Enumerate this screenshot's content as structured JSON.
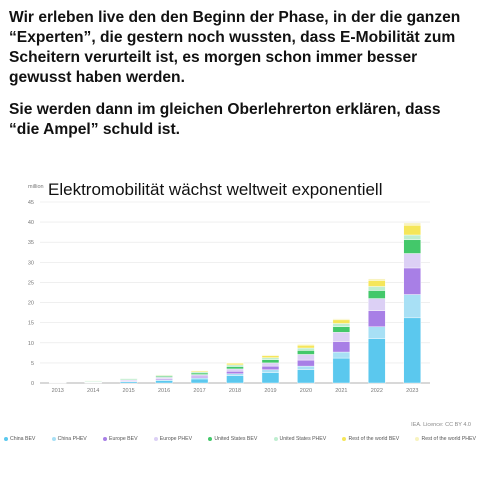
{
  "quote": {
    "paragraph1": "Wir erleben live den den Beginn der Phase, in der die ganzen “Experten”, die gestern noch wussten, dass E-Mobilität zum Scheitern verurteilt ist, es morgen schon immer besser gewusst haben werden.",
    "paragraph2": "Sie werden dann im gleichen Oberlehrerton erklären, dass “die Ampel” schuld ist."
  },
  "license": "IEA. Licence: CC BY 4.0",
  "chart_data": {
    "type": "bar",
    "stacked": true,
    "title": "Elektromobilität wächst weltweit exponentiell",
    "unit_label": "million",
    "ylim": [
      0,
      45
    ],
    "yticks": [
      0,
      5,
      10,
      15,
      20,
      25,
      30,
      35,
      40,
      45
    ],
    "grid": true,
    "legend_position": "bottom",
    "categories": [
      "2013",
      "2014",
      "2015",
      "2016",
      "2017",
      "2018",
      "2019",
      "2020",
      "2021",
      "2022",
      "2023"
    ],
    "series": [
      {
        "name": "China BEV",
        "color": "#5bc8ee",
        "values": [
          0.03,
          0.1,
          0.3,
          0.6,
          1.0,
          1.8,
          2.6,
          3.3,
          6.2,
          11.0,
          16.2
        ]
      },
      {
        "name": "China PHEV",
        "color": "#a8e0f5",
        "values": [
          0.01,
          0.05,
          0.1,
          0.2,
          0.3,
          0.5,
          0.7,
          0.9,
          1.5,
          3.0,
          5.8
        ]
      },
      {
        "name": "Europe BEV",
        "color": "#a87fe6",
        "values": [
          0.05,
          0.1,
          0.2,
          0.3,
          0.4,
          0.6,
          0.9,
          1.5,
          2.6,
          4.0,
          6.6
        ]
      },
      {
        "name": "Europe PHEV",
        "color": "#dcd0f5",
        "values": [
          0.05,
          0.08,
          0.2,
          0.3,
          0.4,
          0.6,
          0.8,
          1.4,
          2.3,
          3.0,
          3.6
        ]
      },
      {
        "name": "United States BEV",
        "color": "#43c86a",
        "values": [
          0.1,
          0.15,
          0.2,
          0.3,
          0.4,
          0.6,
          0.8,
          1.0,
          1.4,
          2.0,
          3.4
        ]
      },
      {
        "name": "United States PHEV",
        "color": "#bfeed0",
        "values": [
          0.05,
          0.1,
          0.15,
          0.2,
          0.3,
          0.4,
          0.5,
          0.6,
          0.8,
          1.0,
          1.2
        ]
      },
      {
        "name": "Rest of the world BEV",
        "color": "#f5e65a",
        "values": [
          0.05,
          0.08,
          0.1,
          0.15,
          0.25,
          0.4,
          0.5,
          0.7,
          0.9,
          1.5,
          2.4
        ]
      },
      {
        "name": "Rest of the world PHEV",
        "color": "#f8f3bf",
        "values": [
          0.01,
          0.02,
          0.05,
          0.05,
          0.1,
          0.15,
          0.2,
          0.2,
          0.3,
          0.4,
          0.6
        ]
      }
    ]
  }
}
